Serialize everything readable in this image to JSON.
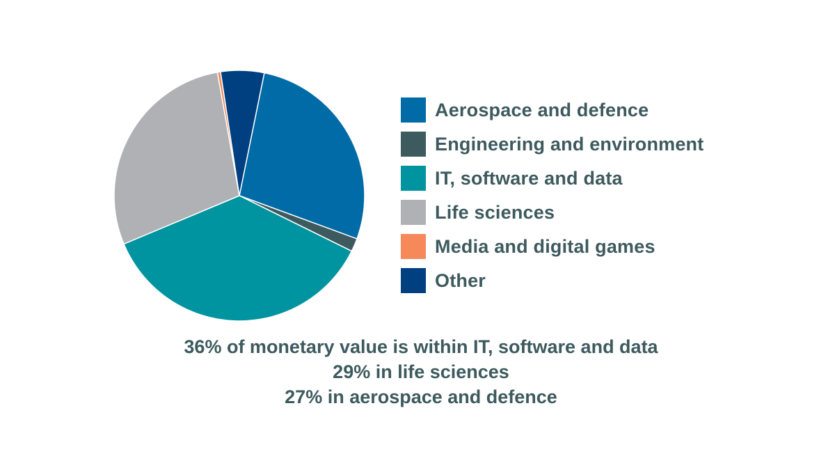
{
  "chart_data": {
    "type": "pie",
    "slices": [
      {
        "label": "Aerospace and defence",
        "value": 27.4,
        "color": "#006ba6"
      },
      {
        "label": "Engineering and environment",
        "value": 1.7,
        "color": "#3d5a5e"
      },
      {
        "label": "IT, software and data",
        "value": 36.4,
        "color": "#0093a0"
      },
      {
        "label": "Life sciences",
        "value": 28.5,
        "color": "#b0b1b5"
      },
      {
        "label": "Media and digital games",
        "value": 0.4,
        "color": "#f5895a"
      },
      {
        "label": "Other",
        "value": 5.6,
        "color": "#003f80"
      }
    ],
    "legend_position": "right"
  },
  "caption": {
    "line1": "36% of monetary value is within IT, software and data",
    "line2": "29% in life sciences",
    "line3": "27% in aerospace and defence"
  }
}
